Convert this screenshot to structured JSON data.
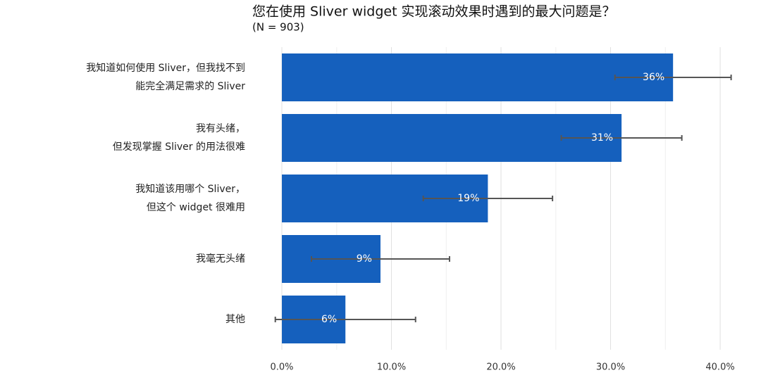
{
  "chart_data": {
    "type": "bar",
    "orientation": "horizontal",
    "title": "您在使用 Sliver widget 实现滚动效果时遇到的最大问题是？",
    "subtitle": "(N = 903)",
    "categories": [
      "我知道如何使用 Sliver，但我找不到\n能完全满足需求的 Sliver",
      "我有头绪，\n但发现掌握 Sliver 的用法很难",
      "我知道该用哪个 Sliver，\n但这个 widget 很难用",
      "我毫无头绪",
      "其他"
    ],
    "values": [
      35.7,
      31.0,
      18.8,
      9.0,
      5.8
    ],
    "value_labels": [
      "36%",
      "31%",
      "19%",
      "9%",
      "6%"
    ],
    "errors": [
      5.3,
      5.5,
      5.9,
      6.3,
      6.4
    ],
    "color": "#1560bd",
    "error_color": "#555555",
    "xlim": [
      -3.5,
      43
    ],
    "xticks": [
      {
        "value": 0,
        "label": "0.0%"
      },
      {
        "value": 10,
        "label": "10.0%"
      },
      {
        "value": 20,
        "label": "20.0%"
      },
      {
        "value": 30,
        "label": "30.0%"
      },
      {
        "value": 40,
        "label": "40.0%"
      }
    ],
    "minor_xticks": [
      5,
      15,
      25,
      35
    ],
    "grid": true
  }
}
